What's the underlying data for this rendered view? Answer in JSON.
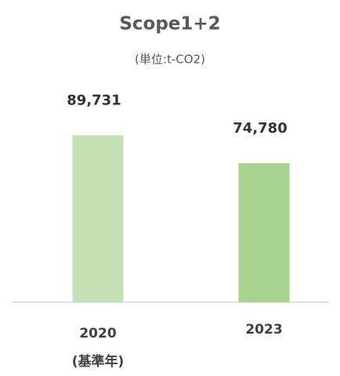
{
  "chart_data": {
    "type": "bar",
    "title": "Scope1+2",
    "subtitle": "(単位:t-CO2)",
    "categories": [
      "2020\n(基準年)",
      "2023"
    ],
    "values": [
      89731,
      74780
    ],
    "value_labels": [
      "89,731",
      "74,780"
    ],
    "colors": [
      "#c5e0b4",
      "#a9d18e"
    ],
    "ylim": [
      0,
      100000
    ]
  }
}
